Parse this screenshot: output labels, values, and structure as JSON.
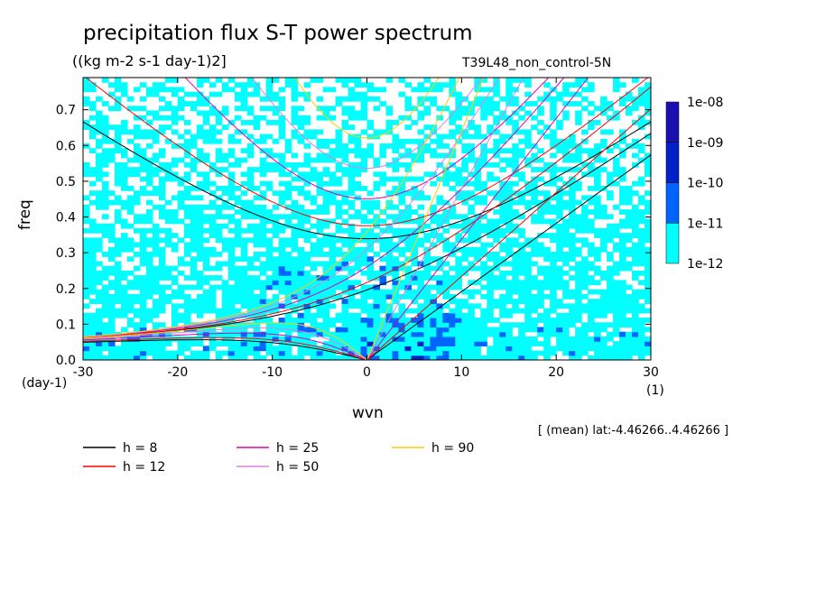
{
  "title": "precipitation flux S-T power spectrum",
  "subtitle": "((kg m-2 s-1 day-1)2]",
  "run_name": "T39L48_non_control-5N",
  "lat_info": "[ (mean) lat:-4.46266..4.46266 ]",
  "chart_data": {
    "type": "heatmap",
    "xlabel": "wvn",
    "ylabel": "freq",
    "x_unit": "(1)",
    "y_unit": "(day-1)",
    "xlim": [
      -30,
      30
    ],
    "ylim": [
      0,
      0.79
    ],
    "xticks": [
      -30,
      -20,
      -10,
      0,
      10,
      20,
      30
    ],
    "yticks": [
      0.0,
      0.1,
      0.2,
      0.3,
      0.4,
      0.5,
      0.6,
      0.7
    ],
    "colorbar": {
      "labels": [
        "1e-12",
        "1e-11",
        "1e-10",
        "1e-09",
        "1e-08"
      ],
      "colors": [
        "#00ffff",
        "#0064ff",
        "#0020c8",
        "#1a10b0",
        "#4a0aa8"
      ],
      "scale": "log"
    },
    "dispersion_curves": [
      {
        "label": "h =  8",
        "h": 8,
        "color": "#000000"
      },
      {
        "label": "h = 12",
        "h": 12,
        "color": "#ff0000"
      },
      {
        "label": "h = 25",
        "h": 25,
        "color": "#e000b0"
      },
      {
        "label": "h = 50",
        "h": 50,
        "color": "#e080e0"
      },
      {
        "label": "h = 90",
        "h": 90,
        "color": "#ffcc00"
      }
    ]
  }
}
